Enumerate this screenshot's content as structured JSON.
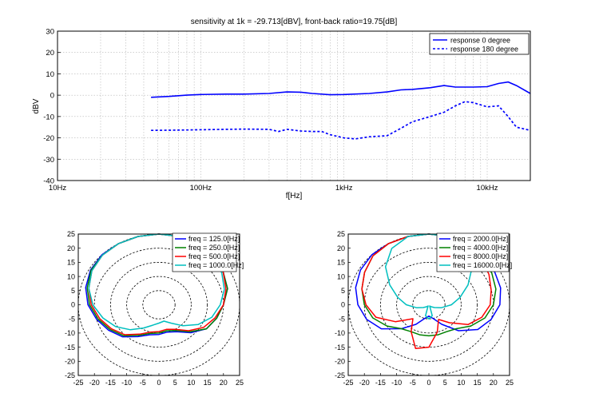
{
  "chart_data": [
    {
      "type": "line",
      "title": "sensitivity at 1k = -29.713[dBV], front-back ratio=19.75[dB]",
      "xlabel": "f[Hz]",
      "ylabel": "dBV",
      "xscale": "log",
      "xlim": [
        10,
        20000
      ],
      "ylim": [
        -40,
        30
      ],
      "xticks": [
        10,
        100,
        1000,
        10000
      ],
      "xtick_labels": [
        "10Hz",
        "100Hz",
        "1kHz",
        "10kHz"
      ],
      "yticks": [
        30,
        20,
        10,
        0,
        -10,
        -20,
        -30,
        -40
      ],
      "ytick_labels": [
        "30",
        "20",
        "10",
        "0",
        "-10",
        "-20",
        "-30",
        "-40"
      ],
      "grid": true,
      "legend_position": "top-right",
      "series": [
        {
          "name": "response 0 degree",
          "color": "#0000ff",
          "style": "solid",
          "x": [
            45,
            60,
            80,
            100,
            150,
            200,
            300,
            400,
            500,
            600,
            800,
            1000,
            1500,
            2000,
            2500,
            3000,
            4000,
            5000,
            6000,
            8000,
            10000,
            12000,
            14000,
            16000,
            20000
          ],
          "y": [
            -1,
            -0.6,
            0,
            0.3,
            0.5,
            0.5,
            0.8,
            1.5,
            1.4,
            0.8,
            0.2,
            0.3,
            0.8,
            1.5,
            2.5,
            2.7,
            3.5,
            4.5,
            3.8,
            3.8,
            4.0,
            5.5,
            6.2,
            4.5,
            0.8
          ]
        },
        {
          "name": "response 180 degree",
          "color": "#0000ff",
          "style": "dashed",
          "x": [
            45,
            60,
            80,
            100,
            150,
            200,
            300,
            350,
            400,
            500,
            600,
            700,
            800,
            1000,
            1200,
            1500,
            2000,
            2500,
            3000,
            4000,
            5000,
            6000,
            7000,
            8000,
            10000,
            12000,
            14000,
            16000,
            20000
          ],
          "y": [
            -16.5,
            -16.4,
            -16.3,
            -16.2,
            -16.0,
            -15.9,
            -16.0,
            -17.0,
            -16.0,
            -16.8,
            -17.0,
            -17.0,
            -18.5,
            -20.0,
            -20.5,
            -19.5,
            -19.0,
            -15.5,
            -12.5,
            -10.0,
            -8.0,
            -5.0,
            -3.0,
            -3.5,
            -5.5,
            -5.0,
            -10.0,
            -15.0,
            -16.5
          ]
        }
      ]
    },
    {
      "type": "polar",
      "xlim": [
        -25,
        25
      ],
      "ylim": [
        -25,
        25
      ],
      "ticks": [
        -25,
        -20,
        -15,
        -10,
        -5,
        0,
        5,
        10,
        15,
        20,
        25
      ],
      "tick_labels": [
        "-25",
        "-20",
        "-15",
        "-10",
        "-5",
        "0",
        "5",
        "10",
        "15",
        "20",
        "25"
      ],
      "grid_radii": [
        5,
        10,
        15,
        20,
        25
      ],
      "legend_position": "top-right",
      "series": [
        {
          "name": "freq = 125.0[Hz]",
          "color": "#0000ff",
          "r": [
            25,
            25,
            24.5,
            24,
            23,
            22,
            20,
            18.5,
            17,
            14,
            11,
            10,
            10.5,
            11,
            13,
            16,
            18,
            20,
            22,
            23.5,
            24.5,
            25,
            25,
            25
          ]
        },
        {
          "name": "freq = 250.0[Hz]",
          "color": "#008000",
          "r": [
            25,
            25,
            24.5,
            24,
            23,
            22,
            20,
            18.5,
            17,
            13.5,
            10.5,
            9.5,
            10,
            10.5,
            12.5,
            15.5,
            17.5,
            19.5,
            21.5,
            23,
            24.3,
            24.8,
            25,
            25
          ]
        },
        {
          "name": "freq = 500.0[Hz]",
          "color": "#ff0000",
          "r": [
            25,
            25,
            24.5,
            24,
            23,
            21.5,
            20,
            18,
            16,
            13,
            10,
            9,
            9.5,
            10,
            12,
            15,
            17,
            19,
            21,
            22.5,
            24,
            24.8,
            25,
            25
          ]
        },
        {
          "name": "freq = 1000.0[Hz]",
          "color": "#00bfbf",
          "r": [
            25,
            25,
            24.5,
            24,
            22.5,
            21,
            19,
            17,
            14,
            10.5,
            7.5,
            6,
            6.5,
            7.5,
            9.5,
            12.5,
            15.5,
            18,
            20.5,
            22.5,
            24,
            24.8,
            25,
            25
          ]
        }
      ]
    },
    {
      "type": "polar",
      "xlim": [
        -25,
        25
      ],
      "ylim": [
        -25,
        25
      ],
      "ticks": [
        -25,
        -20,
        -15,
        -10,
        -5,
        0,
        5,
        10,
        15,
        20,
        25
      ],
      "tick_labels": [
        "-25",
        "-20",
        "-15",
        "-10",
        "-5",
        "0",
        "5",
        "10",
        "15",
        "20",
        "25"
      ],
      "grid_radii": [
        5,
        10,
        15,
        20,
        25
      ],
      "legend_position": "top-right",
      "series": [
        {
          "name": "freq = 2000.0[Hz]",
          "color": "#0000ff",
          "r": [
            25,
            25,
            24.5,
            24,
            23.5,
            23,
            22,
            20,
            17.5,
            13,
            8,
            5,
            4,
            5,
            8,
            12,
            17,
            20,
            22,
            23.5,
            24.5,
            25,
            25,
            25
          ]
        },
        {
          "name": "freq = 4000.0[Hz]",
          "color": "#008000",
          "r": [
            25,
            25,
            24.5,
            23.5,
            22.5,
            21.5,
            20,
            18,
            15,
            12,
            11,
            11,
            11,
            11,
            11,
            12,
            15,
            18,
            20,
            21.5,
            23,
            24.5,
            25,
            25
          ]
        },
        {
          "name": "freq = 8000.0[Hz]",
          "color": "#ff0000",
          "r": [
            25,
            25,
            24,
            23,
            21.5,
            20,
            19,
            17,
            14,
            9,
            6,
            10,
            15,
            16,
            11,
            7,
            12,
            17,
            19.5,
            21.5,
            23,
            24.5,
            25,
            25
          ]
        },
        {
          "name": "freq = 16000.0[Hz]",
          "color": "#00bfbf",
          "r": [
            25,
            25,
            23,
            19,
            14,
            10,
            7,
            4,
            2,
            1,
            0.5,
            4,
            5,
            4,
            0.5,
            1,
            2,
            4,
            7,
            10,
            14,
            19,
            23,
            25
          ]
        }
      ]
    }
  ]
}
